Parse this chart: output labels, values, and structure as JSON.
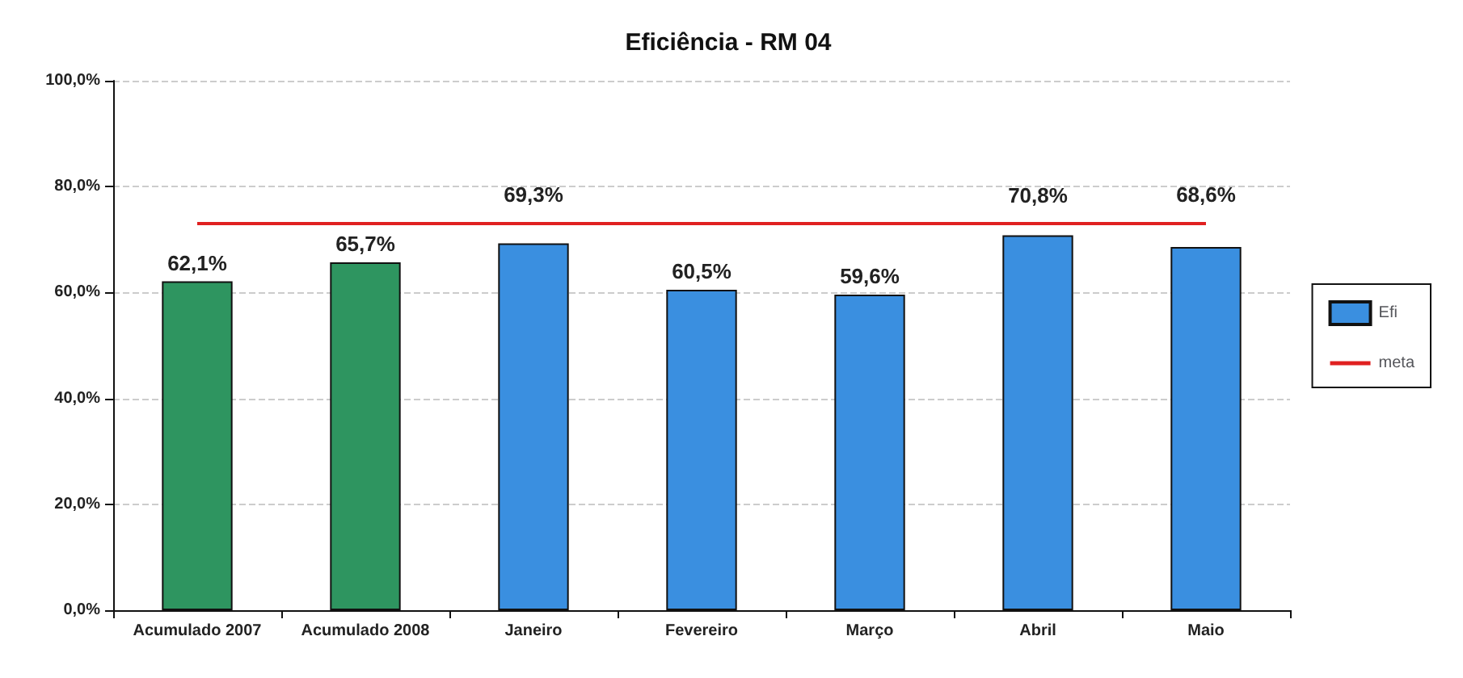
{
  "chart_data": {
    "type": "bar",
    "title": "Eficiência - RM 04",
    "categories": [
      "Acumulado 2007",
      "Acumulado 2008",
      "Janeiro",
      "Fevereiro",
      "Março",
      "Abril",
      "Maio"
    ],
    "series": [
      {
        "name": "Efi",
        "color": "#3a8fe0",
        "colors": [
          "#2e9560",
          "#2e9560",
          "#3a8fe0",
          "#3a8fe0",
          "#3a8fe0",
          "#3a8fe0",
          "#3a8fe0"
        ],
        "values": [
          62.1,
          65.7,
          69.3,
          60.5,
          59.6,
          70.8,
          68.6
        ],
        "value_labels": [
          "62,1%",
          "65,7%",
          "69,3%",
          "60,5%",
          "59,6%",
          "70,8%",
          "68,6%"
        ]
      },
      {
        "name": "meta",
        "type": "line",
        "color": "#e02020",
        "values": [
          73,
          73,
          73,
          73,
          73,
          73,
          73
        ]
      }
    ],
    "ylim": [
      0,
      100
    ],
    "yticks": [
      {
        "value": 0,
        "label": "0,0%"
      },
      {
        "value": 20,
        "label": "20,0%"
      },
      {
        "value": 40,
        "label": "40,0%"
      },
      {
        "value": 60,
        "label": "60,0%"
      },
      {
        "value": 80,
        "label": "80,0%"
      },
      {
        "value": 100,
        "label": "100,0%"
      }
    ],
    "grid": "y",
    "legend": "right",
    "marker": "none",
    "line_style": "solid"
  }
}
